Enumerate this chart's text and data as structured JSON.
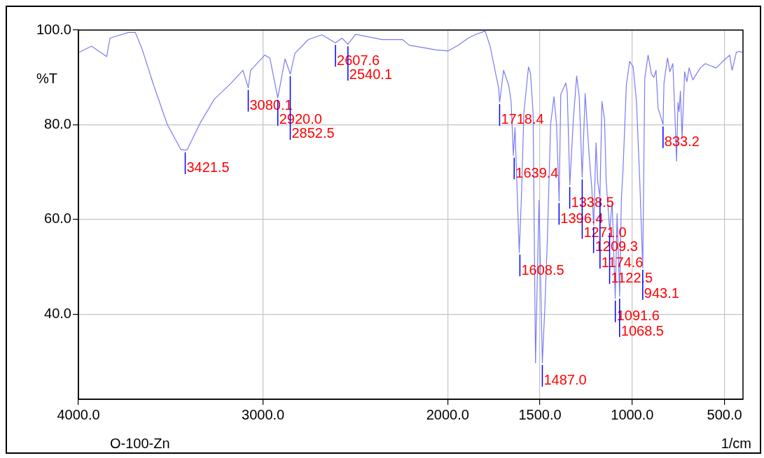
{
  "chart_data": {
    "type": "line",
    "xlabel": "1/cm",
    "ylabel": "%T",
    "xlim": [
      4000,
      400
    ],
    "ylim": [
      22,
      100
    ],
    "xticks": [
      {
        "value": 4000,
        "label": "4000.0"
      },
      {
        "value": 3000,
        "label": "3000.0"
      },
      {
        "value": 2000,
        "label": "2000.0"
      },
      {
        "value": 1500,
        "label": "1500.0"
      },
      {
        "value": 1000,
        "label": "1000.0"
      },
      {
        "value": 500,
        "label": "500.0"
      }
    ],
    "yticks": [
      {
        "value": 100,
        "label": "100.0"
      },
      {
        "value": 80,
        "label": "80.0"
      },
      {
        "value": 60,
        "label": "60.0"
      },
      {
        "value": 40,
        "label": "40.0"
      }
    ],
    "grid": true,
    "legend": false,
    "marker": "none",
    "line_style": "solid",
    "series": [
      {
        "color": "#7b7bf2",
        "x": [
          3996,
          3929,
          3847,
          3829,
          3729,
          3692,
          3656,
          3592,
          3519,
          3446,
          3421.5,
          3410,
          3337,
          3264,
          3173,
          3109,
          3080,
          3067,
          2991,
          2963,
          2920,
          2881,
          2852,
          2827,
          2754,
          2681,
          2608,
          2572,
          2540,
          2499,
          2354,
          2245,
          2208,
          2062,
          1997,
          1943,
          1888,
          1852,
          1797,
          1770,
          1724,
          1718,
          1697,
          1669,
          1656,
          1644,
          1635,
          1627,
          1612,
          1600,
          1587,
          1562,
          1551,
          1537,
          1524,
          1505,
          1487,
          1474,
          1460,
          1442,
          1424,
          1410,
          1396,
          1387,
          1360,
          1352,
          1338,
          1319,
          1301,
          1287,
          1271,
          1255,
          1232,
          1219,
          1209,
          1196,
          1187,
          1175,
          1164,
          1150,
          1141,
          1122,
          1109,
          1092,
          1082,
          1068,
          1059,
          1050,
          1032,
          1014,
          995,
          977,
          959,
          943,
          932,
          914,
          896,
          883,
          871,
          860,
          833,
          828,
          809,
          796,
          780,
          769,
          760,
          752,
          746,
          739,
          730,
          716,
          704,
          692,
          672,
          631,
          604,
          545,
          495,
          472,
          459,
          436,
          422,
          402
        ],
        "values": [
          95.3,
          96.6,
          94.4,
          98.3,
          99.5,
          99.5,
          96.1,
          88.3,
          80.1,
          74.8,
          74.6,
          74.8,
          80.6,
          85.4,
          88.8,
          91.5,
          87.8,
          91.5,
          94.7,
          94.1,
          85.7,
          93.9,
          90.7,
          95.1,
          98.0,
          99.0,
          97.3,
          98.3,
          97.0,
          99.1,
          98.0,
          98.0,
          96.8,
          95.8,
          95.6,
          96.8,
          98.3,
          99.0,
          99.8,
          96.6,
          87.8,
          84.8,
          91.5,
          88.3,
          84.9,
          73.5,
          79.4,
          70,
          53.0,
          65,
          82.5,
          92.2,
          90.8,
          82.5,
          29.7,
          64,
          29.7,
          40.8,
          55.4,
          80.1,
          85.9,
          80.1,
          63.9,
          86.4,
          88.8,
          86.9,
          67.3,
          81.1,
          90.3,
          85.9,
          68.9,
          86.6,
          72.8,
          66.6,
          58.8,
          76.2,
          68,
          64.8,
          84.9,
          81.1,
          68,
          57.6,
          63.7,
          43.3,
          61.2,
          43.7,
          64.1,
          70.4,
          88.3,
          93.4,
          92.2,
          84.9,
          68,
          49.8,
          89.8,
          94.7,
          90.7,
          90.0,
          91.5,
          83.5,
          80.1,
          88.8,
          94.1,
          91.2,
          92.9,
          82.5,
          72.3,
          84.7,
          82.8,
          87.1,
          77.2,
          91.2,
          89.1,
          92.0,
          89.5,
          92.0,
          92.9,
          92.0,
          93.9,
          94.7,
          91.5,
          95.3,
          95.5,
          95.3
        ]
      }
    ],
    "annotations": [
      {
        "text": "3421.5",
        "x": 3421.5,
        "y": 74.6
      },
      {
        "text": "3080.1",
        "x": 3080.1,
        "y": 87.8
      },
      {
        "text": "2920.0",
        "x": 2920.0,
        "y": 85.7
      },
      {
        "text": "2852.5",
        "x": 2852.5,
        "y": 90.7
      },
      {
        "text": "2607.6",
        "x": 2607.6,
        "y": 97.3
      },
      {
        "text": "2540.1",
        "x": 2540.1,
        "y": 97.0
      },
      {
        "text": "1718.4",
        "x": 1718.4,
        "y": 84.8
      },
      {
        "text": "1639.4",
        "x": 1639.4,
        "y": 73.5
      },
      {
        "text": "1608.5",
        "x": 1608.5,
        "y": 53.0
      },
      {
        "text": "1487.0",
        "x": 1487.0,
        "y": 29.7
      },
      {
        "text": "1396.4",
        "x": 1396.4,
        "y": 63.9
      },
      {
        "text": "1338.5",
        "x": 1338.5,
        "y": 67.3
      },
      {
        "text": "1271.0",
        "x": 1271.0,
        "y": 68.9
      },
      {
        "text": "1209.3",
        "x": 1209.3,
        "y": 58.8
      },
      {
        "text": "1174.6",
        "x": 1174.6,
        "y": 64.8
      },
      {
        "text": "1122.5",
        "x": 1122.5,
        "y": 57.6
      },
      {
        "text": "1091.6",
        "x": 1091.6,
        "y": 43.3
      },
      {
        "text": "1068.5",
        "x": 1068.5,
        "y": 43.7
      },
      {
        "text": "943.1",
        "x": 943.1,
        "y": 49.8
      },
      {
        "text": "833.2",
        "x": 833.2,
        "y": 80.1
      },
      "O-100-Zn"
    ]
  }
}
